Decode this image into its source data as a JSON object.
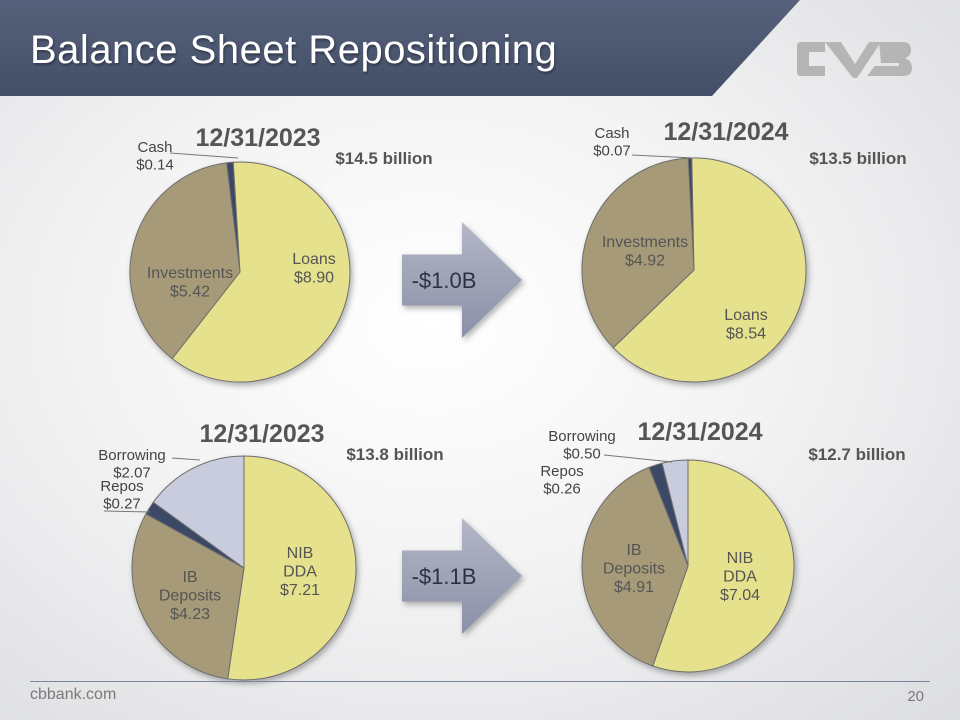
{
  "title": "Balance Sheet Repositioning",
  "logo_icon": "cvb-logo-icon",
  "colors": {
    "banner": "#4a5570",
    "loans": "#e6e18c",
    "investments": "#a79a78",
    "cash": "#3b4a66",
    "borrowing": "#c9ccdd",
    "repos": "#3b4a66",
    "arrow": "#9ea3b5"
  },
  "chart_data": [
    {
      "type": "pie",
      "title": "12/31/2023",
      "total": "$14.5 billion",
      "labels": [
        "Cash",
        "Loans",
        "Investments"
      ],
      "values": [
        0.14,
        8.9,
        5.42
      ],
      "value_labels": [
        "$0.14",
        "$8.90",
        "$5.42"
      ]
    },
    {
      "type": "pie",
      "title": "12/31/2024",
      "total": "$13.5 billion",
      "labels": [
        "Cash",
        "Loans",
        "Investments"
      ],
      "values": [
        0.07,
        8.54,
        4.92
      ],
      "value_labels": [
        "$0.07",
        "$8.54",
        "$4.92"
      ]
    },
    {
      "type": "pie",
      "title": "12/31/2023",
      "total": "$13.8 billion",
      "labels": [
        "NIB DDA",
        "IB Deposits",
        "Repos",
        "Borrowing"
      ],
      "values": [
        7.21,
        4.23,
        0.27,
        2.07
      ],
      "value_labels": [
        "$7.21",
        "$4.23",
        "$0.27",
        "$2.07"
      ]
    },
    {
      "type": "pie",
      "title": "12/31/2024",
      "total": "$12.7 billion",
      "labels": [
        "NIB DDA",
        "IB Deposits",
        "Repos",
        "Borrowing"
      ],
      "values": [
        7.04,
        4.91,
        0.26,
        0.5
      ],
      "value_labels": [
        "$7.04",
        "$4.91",
        "$0.26",
        "$0.50"
      ]
    }
  ],
  "arrows": [
    {
      "label": "-$1.0B"
    },
    {
      "label": "-$1.1B"
    }
  ],
  "footer": {
    "url": "cbbank.com",
    "page": "20"
  }
}
